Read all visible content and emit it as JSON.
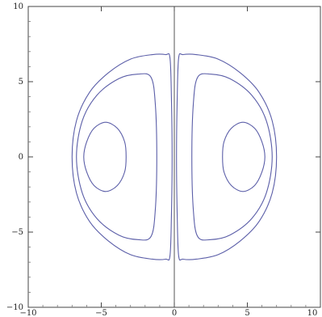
{
  "chart_data": {
    "type": "contour",
    "title": "",
    "xlabel": "",
    "ylabel": "",
    "xlim": [
      -10,
      10
    ],
    "ylim": [
      -10,
      10
    ],
    "x_ticks": [
      {
        "value": -10,
        "label": "−10"
      },
      {
        "value": -5,
        "label": "−5"
      },
      {
        "value": 0,
        "label": "0"
      },
      {
        "value": 5,
        "label": "5"
      },
      {
        "value": 10,
        "label": "10"
      }
    ],
    "y_ticks": [
      {
        "value": 10,
        "label": "10"
      },
      {
        "value": 5,
        "label": "5"
      },
      {
        "value": 0,
        "label": "0"
      },
      {
        "value": -5,
        "label": "−5"
      },
      {
        "value": -10,
        "label": "−10"
      }
    ],
    "grid": false,
    "colors": {
      "contour": "#5b5ea8",
      "frame": "#444444",
      "axis": "#555555"
    },
    "contours": [
      {
        "name": "outer-right",
        "points": [
          [
            0.3,
            6.6
          ],
          [
            0.6,
            6.8
          ],
          [
            1.5,
            6.8
          ],
          [
            3.0,
            6.5
          ],
          [
            4.5,
            5.6
          ],
          [
            5.8,
            4.3
          ],
          [
            6.7,
            2.4
          ],
          [
            7.0,
            0.0
          ],
          [
            6.7,
            -2.4
          ],
          [
            5.8,
            -4.3
          ],
          [
            4.5,
            -5.6
          ],
          [
            3.0,
            -6.5
          ],
          [
            1.5,
            -6.8
          ],
          [
            0.6,
            -6.8
          ],
          [
            0.3,
            -6.6
          ],
          [
            0.2,
            -4.0
          ],
          [
            0.15,
            0.0
          ],
          [
            0.2,
            4.0
          ]
        ]
      },
      {
        "name": "outer-left",
        "points": [
          [
            -0.3,
            6.6
          ],
          [
            -0.6,
            6.8
          ],
          [
            -1.5,
            6.8
          ],
          [
            -3.0,
            6.5
          ],
          [
            -4.5,
            5.6
          ],
          [
            -5.8,
            4.3
          ],
          [
            -6.7,
            2.4
          ],
          [
            -7.0,
            0.0
          ],
          [
            -6.7,
            -2.4
          ],
          [
            -5.8,
            -4.3
          ],
          [
            -4.5,
            -5.6
          ],
          [
            -3.0,
            -6.5
          ],
          [
            -1.5,
            -6.8
          ],
          [
            -0.6,
            -6.8
          ],
          [
            -0.3,
            -6.6
          ],
          [
            -0.2,
            -4.0
          ],
          [
            -0.15,
            0.0
          ],
          [
            -0.2,
            4.0
          ]
        ]
      },
      {
        "name": "middle-right",
        "points": [
          [
            1.6,
            5.3
          ],
          [
            2.5,
            5.5
          ],
          [
            3.8,
            5.2
          ],
          [
            5.3,
            4.1
          ],
          [
            6.3,
            2.4
          ],
          [
            6.7,
            0.0
          ],
          [
            6.3,
            -2.4
          ],
          [
            5.3,
            -4.1
          ],
          [
            3.8,
            -5.2
          ],
          [
            2.5,
            -5.5
          ],
          [
            1.6,
            -5.3
          ],
          [
            1.3,
            -3.5
          ],
          [
            1.2,
            0.0
          ],
          [
            1.3,
            3.5
          ]
        ]
      },
      {
        "name": "middle-left",
        "points": [
          [
            -1.6,
            5.3
          ],
          [
            -2.5,
            5.5
          ],
          [
            -3.8,
            5.2
          ],
          [
            -5.3,
            4.1
          ],
          [
            -6.3,
            2.4
          ],
          [
            -6.7,
            0.0
          ],
          [
            -6.3,
            -2.4
          ],
          [
            -5.3,
            -4.1
          ],
          [
            -3.8,
            -5.2
          ],
          [
            -2.5,
            -5.5
          ],
          [
            -1.6,
            -5.3
          ],
          [
            -1.3,
            -3.5
          ],
          [
            -1.2,
            0.0
          ],
          [
            -1.3,
            3.5
          ]
        ]
      },
      {
        "name": "inner-right",
        "points": [
          [
            4.7,
            2.3
          ],
          [
            5.5,
            1.9
          ],
          [
            6.0,
            1.0
          ],
          [
            6.2,
            0.0
          ],
          [
            6.0,
            -1.0
          ],
          [
            5.5,
            -1.9
          ],
          [
            4.7,
            -2.3
          ],
          [
            3.9,
            -1.9
          ],
          [
            3.4,
            -1.0
          ],
          [
            3.3,
            0.0
          ],
          [
            3.4,
            1.0
          ],
          [
            3.9,
            1.9
          ]
        ]
      },
      {
        "name": "inner-left",
        "points": [
          [
            -4.7,
            2.3
          ],
          [
            -5.5,
            1.9
          ],
          [
            -6.0,
            1.0
          ],
          [
            -6.2,
            0.0
          ],
          [
            -6.0,
            -1.0
          ],
          [
            -5.5,
            -1.9
          ],
          [
            -4.7,
            -2.3
          ],
          [
            -3.9,
            -1.9
          ],
          [
            -3.4,
            -1.0
          ],
          [
            -3.3,
            0.0
          ],
          [
            -3.4,
            1.0
          ],
          [
            -3.9,
            1.9
          ]
        ]
      }
    ],
    "vertical_line": {
      "name": "center-line",
      "x": 0.0,
      "y_range": [
        -10,
        10
      ]
    }
  }
}
